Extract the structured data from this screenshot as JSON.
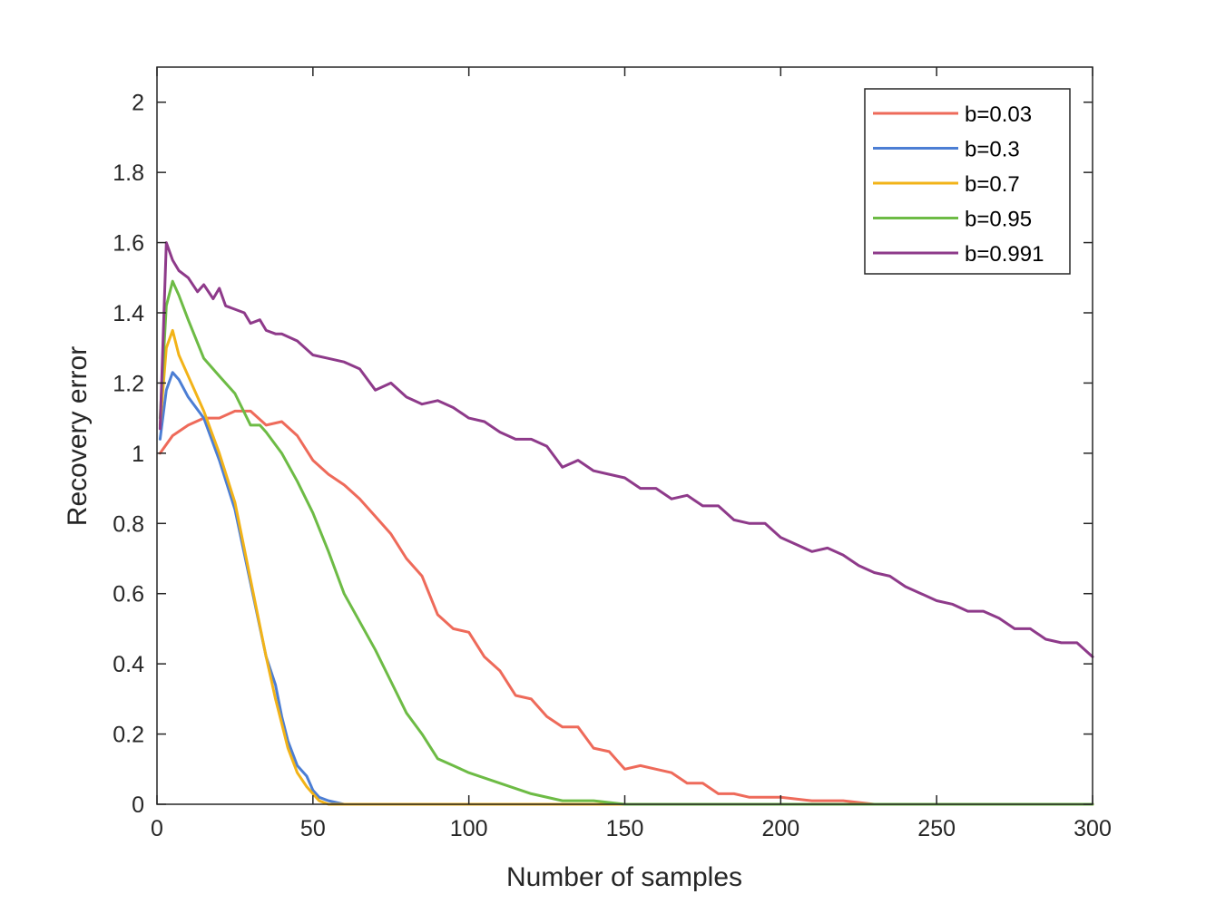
{
  "chart_data": {
    "type": "line",
    "title": "",
    "xlabel": "Number of samples",
    "ylabel": "Recovery error",
    "xlim": [
      0,
      300
    ],
    "ylim": [
      0,
      2.1
    ],
    "xticks": [
      0,
      50,
      100,
      150,
      200,
      250,
      300
    ],
    "yticks": [
      0,
      0.2,
      0.4,
      0.6,
      0.8,
      1,
      1.2,
      1.4,
      1.6,
      1.8,
      2
    ],
    "xtick_labels": [
      "0",
      "50",
      "100",
      "150",
      "200",
      "250",
      "300"
    ],
    "ytick_labels": [
      "0",
      "0.2",
      "0.4",
      "0.6",
      "0.8",
      "1",
      "1.2",
      "1.4",
      "1.6",
      "1.8",
      "2"
    ],
    "grid": false,
    "legend_position": "top-right",
    "series": [
      {
        "name": "b=0.03",
        "color": "#EE6A5A",
        "x": [
          1,
          5,
          10,
          15,
          20,
          25,
          30,
          35,
          40,
          45,
          50,
          55,
          60,
          65,
          70,
          75,
          80,
          85,
          90,
          95,
          100,
          105,
          110,
          115,
          120,
          125,
          130,
          135,
          140,
          145,
          150,
          155,
          160,
          165,
          170,
          175,
          180,
          185,
          190,
          200,
          210,
          220,
          230,
          240,
          250,
          260,
          270,
          280,
          290,
          300
        ],
        "y": [
          1.0,
          1.05,
          1.08,
          1.1,
          1.1,
          1.12,
          1.12,
          1.08,
          1.09,
          1.05,
          0.98,
          0.94,
          0.91,
          0.87,
          0.82,
          0.77,
          0.7,
          0.65,
          0.54,
          0.5,
          0.49,
          0.42,
          0.38,
          0.31,
          0.3,
          0.25,
          0.22,
          0.22,
          0.16,
          0.15,
          0.1,
          0.11,
          0.1,
          0.09,
          0.06,
          0.06,
          0.03,
          0.03,
          0.02,
          0.02,
          0.01,
          0.01,
          0.0,
          0.0,
          0.0,
          0.0,
          0.0,
          0.0,
          0.0,
          0.0
        ]
      },
      {
        "name": "b=0.3",
        "color": "#4C7ED4",
        "x": [
          1,
          3,
          5,
          7,
          10,
          15,
          20,
          25,
          30,
          35,
          38,
          40,
          42,
          45,
          48,
          50,
          52,
          55,
          60,
          65,
          70,
          100,
          150,
          200,
          250,
          300
        ],
        "y": [
          1.04,
          1.18,
          1.23,
          1.21,
          1.16,
          1.1,
          0.98,
          0.84,
          0.63,
          0.42,
          0.34,
          0.25,
          0.18,
          0.11,
          0.08,
          0.04,
          0.02,
          0.01,
          0.0,
          0.0,
          0.0,
          0.0,
          0.0,
          0.0,
          0.0,
          0.0
        ]
      },
      {
        "name": "b=0.7",
        "color": "#F2B318",
        "x": [
          1,
          3,
          5,
          7,
          10,
          15,
          20,
          25,
          30,
          35,
          38,
          40,
          42,
          45,
          48,
          50,
          52,
          55,
          60,
          65,
          70,
          100,
          150,
          200,
          250,
          300
        ],
        "y": [
          1.08,
          1.3,
          1.35,
          1.28,
          1.22,
          1.12,
          1.0,
          0.86,
          0.64,
          0.42,
          0.3,
          0.23,
          0.16,
          0.09,
          0.05,
          0.03,
          0.01,
          0.0,
          0.0,
          0.0,
          0.0,
          0.0,
          0.0,
          0.0,
          0.0,
          0.0
        ]
      },
      {
        "name": "b=0.95",
        "color": "#6DBB45",
        "x": [
          1,
          3,
          5,
          7,
          10,
          15,
          20,
          25,
          30,
          33,
          35,
          40,
          45,
          50,
          55,
          60,
          65,
          70,
          75,
          80,
          85,
          90,
          95,
          100,
          110,
          120,
          130,
          140,
          150,
          160,
          180,
          200,
          250,
          300
        ],
        "y": [
          1.1,
          1.42,
          1.49,
          1.45,
          1.38,
          1.27,
          1.22,
          1.17,
          1.08,
          1.08,
          1.06,
          1.0,
          0.92,
          0.83,
          0.72,
          0.6,
          0.52,
          0.44,
          0.35,
          0.26,
          0.2,
          0.13,
          0.11,
          0.09,
          0.06,
          0.03,
          0.01,
          0.01,
          0.0,
          0.0,
          0.0,
          0.0,
          0.0,
          0.0
        ]
      },
      {
        "name": "b=0.991",
        "color": "#8E3A8A",
        "x": [
          1,
          3,
          5,
          7,
          10,
          13,
          15,
          18,
          20,
          22,
          25,
          28,
          30,
          33,
          35,
          38,
          40,
          45,
          50,
          55,
          60,
          65,
          70,
          75,
          80,
          85,
          90,
          95,
          100,
          105,
          110,
          115,
          120,
          125,
          130,
          135,
          140,
          145,
          150,
          155,
          160,
          165,
          170,
          175,
          180,
          185,
          190,
          195,
          200,
          205,
          210,
          215,
          220,
          225,
          230,
          235,
          240,
          245,
          250,
          255,
          260,
          265,
          270,
          275,
          280,
          285,
          290,
          295,
          300
        ],
        "y": [
          1.07,
          1.6,
          1.55,
          1.52,
          1.5,
          1.46,
          1.48,
          1.44,
          1.47,
          1.42,
          1.41,
          1.4,
          1.37,
          1.38,
          1.35,
          1.34,
          1.34,
          1.32,
          1.28,
          1.27,
          1.26,
          1.24,
          1.18,
          1.2,
          1.16,
          1.14,
          1.15,
          1.13,
          1.1,
          1.09,
          1.06,
          1.04,
          1.04,
          1.02,
          0.96,
          0.98,
          0.95,
          0.94,
          0.93,
          0.9,
          0.9,
          0.87,
          0.88,
          0.85,
          0.85,
          0.81,
          0.8,
          0.8,
          0.76,
          0.74,
          0.72,
          0.73,
          0.71,
          0.68,
          0.66,
          0.65,
          0.62,
          0.6,
          0.58,
          0.57,
          0.55,
          0.55,
          0.53,
          0.5,
          0.5,
          0.47,
          0.46,
          0.46,
          0.42
        ]
      }
    ]
  }
}
